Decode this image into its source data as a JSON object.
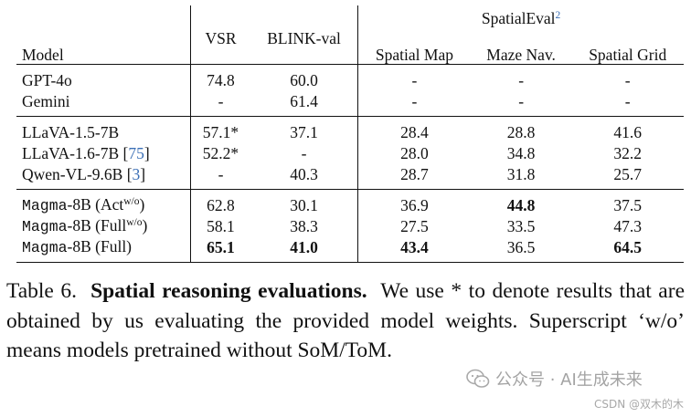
{
  "table": {
    "headers": {
      "model": "Model",
      "vsr": "VSR",
      "blink": "BLINK-val",
      "spatialeval": "SpatialEval",
      "spatialeval_cite": "2",
      "spatial_map": "Spatial Map",
      "maze_nav": "Maze Nav.",
      "spatial_grid": "Spatial Grid"
    },
    "groups": [
      {
        "rows": [
          {
            "model": "GPT-4o",
            "vsr": "74.8",
            "blink": "60.0",
            "map": "-",
            "maze": "-",
            "grid": "-"
          },
          {
            "model": "Gemini",
            "vsr": "-",
            "blink": "61.4",
            "map": "-",
            "maze": "-",
            "grid": "-"
          }
        ]
      },
      {
        "rows": [
          {
            "model": "LLaVA-1.5-7B",
            "vsr": "57.1*",
            "blink": "37.1",
            "map": "28.4",
            "maze": "28.8",
            "grid": "41.6"
          },
          {
            "model": "LLaVA-1.6-7B",
            "cite": "75",
            "vsr": "52.2*",
            "blink": "-",
            "map": "28.0",
            "maze": "34.8",
            "grid": "32.2"
          },
          {
            "model": "Qwen-VL-9.6B",
            "cite": "3",
            "vsr": "-",
            "blink": "40.3",
            "map": "28.7",
            "maze": "31.8",
            "grid": "25.7"
          }
        ]
      },
      {
        "rows": [
          {
            "model": "Magma",
            "suffix": "-8B (Act",
            "sup": "w/o",
            "close": ")",
            "vsr": "62.8",
            "blink": "30.1",
            "map": "36.9",
            "maze": "44.8",
            "grid": "37.5"
          },
          {
            "model": "Magma",
            "suffix": "-8B (Full",
            "sup": "w/o",
            "close": ")",
            "vsr": "58.1",
            "blink": "38.3",
            "map": "27.5",
            "maze": "33.5",
            "grid": "47.3"
          },
          {
            "model": "Magma",
            "suffix": "-8B (Full)",
            "vsr": "65.1",
            "blink": "41.0",
            "map": "43.4",
            "maze": "36.5",
            "grid": "64.5"
          }
        ]
      }
    ]
  },
  "caption": {
    "label": "Table 6.",
    "title": "Spatial reasoning evaluations.",
    "body": "We use * to denote results that are obtained by us evaluating the provided model weights.  Superscript ‘w/o’ means models pretrained without SoM/ToM."
  },
  "watermark": {
    "text": "公众号 · AI生成未来",
    "icon": "wechat-icon",
    "csdn": "CSDN @双木的木"
  },
  "colors": {
    "citation": "#3b6fb6",
    "text": "#111111",
    "watermark": "#9a9a9a"
  }
}
